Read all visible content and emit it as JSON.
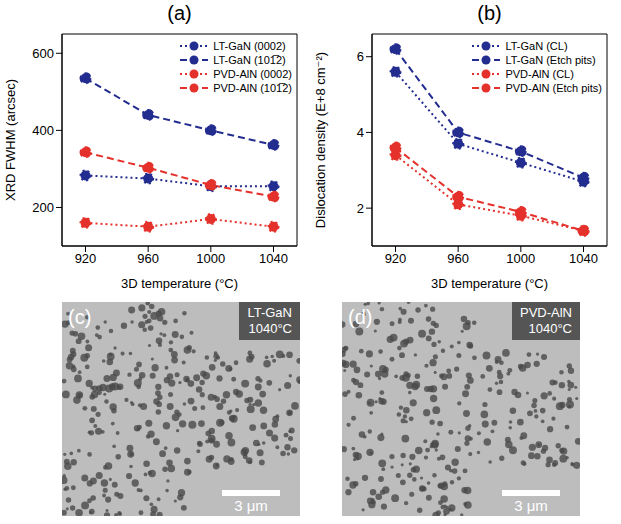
{
  "chart_data": [
    {
      "type": "line",
      "title": "(a)",
      "x_label": "3D temperature (°C)",
      "y_label": "XRD FWHM (arcsec)",
      "x": [
        920,
        960,
        1000,
        1040
      ],
      "xlim": [
        905,
        1055
      ],
      "xticks": [
        920,
        960,
        1000,
        1040
      ],
      "ylim": [
        100,
        650
      ],
      "yticks": [
        200,
        400,
        600
      ],
      "grid": false,
      "legend": "top-right",
      "series": [
        {
          "name": "LT-GaN (0002)",
          "color": "#232c8f",
          "line_style": "dotted",
          "marker": "circle",
          "values": [
            283,
            275,
            255,
            255
          ]
        },
        {
          "name": "LT-GaN (101̅2)",
          "color": "#232c8f",
          "line_style": "dashed",
          "marker": "circle",
          "values": [
            535,
            440,
            400,
            362
          ]
        },
        {
          "name": "PVD-AlN (0002)",
          "color": "#e4312b",
          "line_style": "dotted",
          "marker": "circle",
          "values": [
            160,
            150,
            170,
            150
          ]
        },
        {
          "name": "PVD-AlN (101̅2)",
          "color": "#e4312b",
          "line_style": "dashed",
          "marker": "circle",
          "values": [
            343,
            303,
            258,
            228
          ]
        }
      ]
    },
    {
      "type": "line",
      "title": "(b)",
      "x_label": "3D temperature (°C)",
      "y_label": "Dislocation density (E+8 cm⁻²)",
      "x": [
        920,
        960,
        1000,
        1040
      ],
      "xlim": [
        905,
        1055
      ],
      "xticks": [
        920,
        960,
        1000,
        1040
      ],
      "ylim": [
        1,
        6.6
      ],
      "yticks": [
        2,
        4,
        6
      ],
      "grid": false,
      "legend": "top-right",
      "series": [
        {
          "name": "LT-GaN (CL)",
          "color": "#232c8f",
          "line_style": "dotted",
          "marker": "circle",
          "values": [
            5.6,
            3.7,
            3.2,
            2.7
          ]
        },
        {
          "name": "LT-GaN (Etch pits)",
          "color": "#232c8f",
          "line_style": "dashed",
          "marker": "circle",
          "values": [
            6.2,
            4.0,
            3.5,
            2.8
          ]
        },
        {
          "name": "PVD-AlN (CL)",
          "color": "#e4312b",
          "line_style": "dotted",
          "marker": "circle",
          "values": [
            3.4,
            2.1,
            1.8,
            1.4
          ]
        },
        {
          "name": "PVD-AlN (Etch pits)",
          "color": "#e4312b",
          "line_style": "dashed",
          "marker": "circle",
          "values": [
            3.6,
            2.3,
            1.9,
            1.4
          ]
        }
      ]
    }
  ],
  "images": [
    {
      "label": "(c)",
      "title": "LT-GaN",
      "subtitle": "1040°C",
      "scale_bar": "3 μm"
    },
    {
      "label": "(d)",
      "title": "PVD-AlN",
      "subtitle": "1040°C",
      "scale_bar": "3 μm"
    }
  ]
}
